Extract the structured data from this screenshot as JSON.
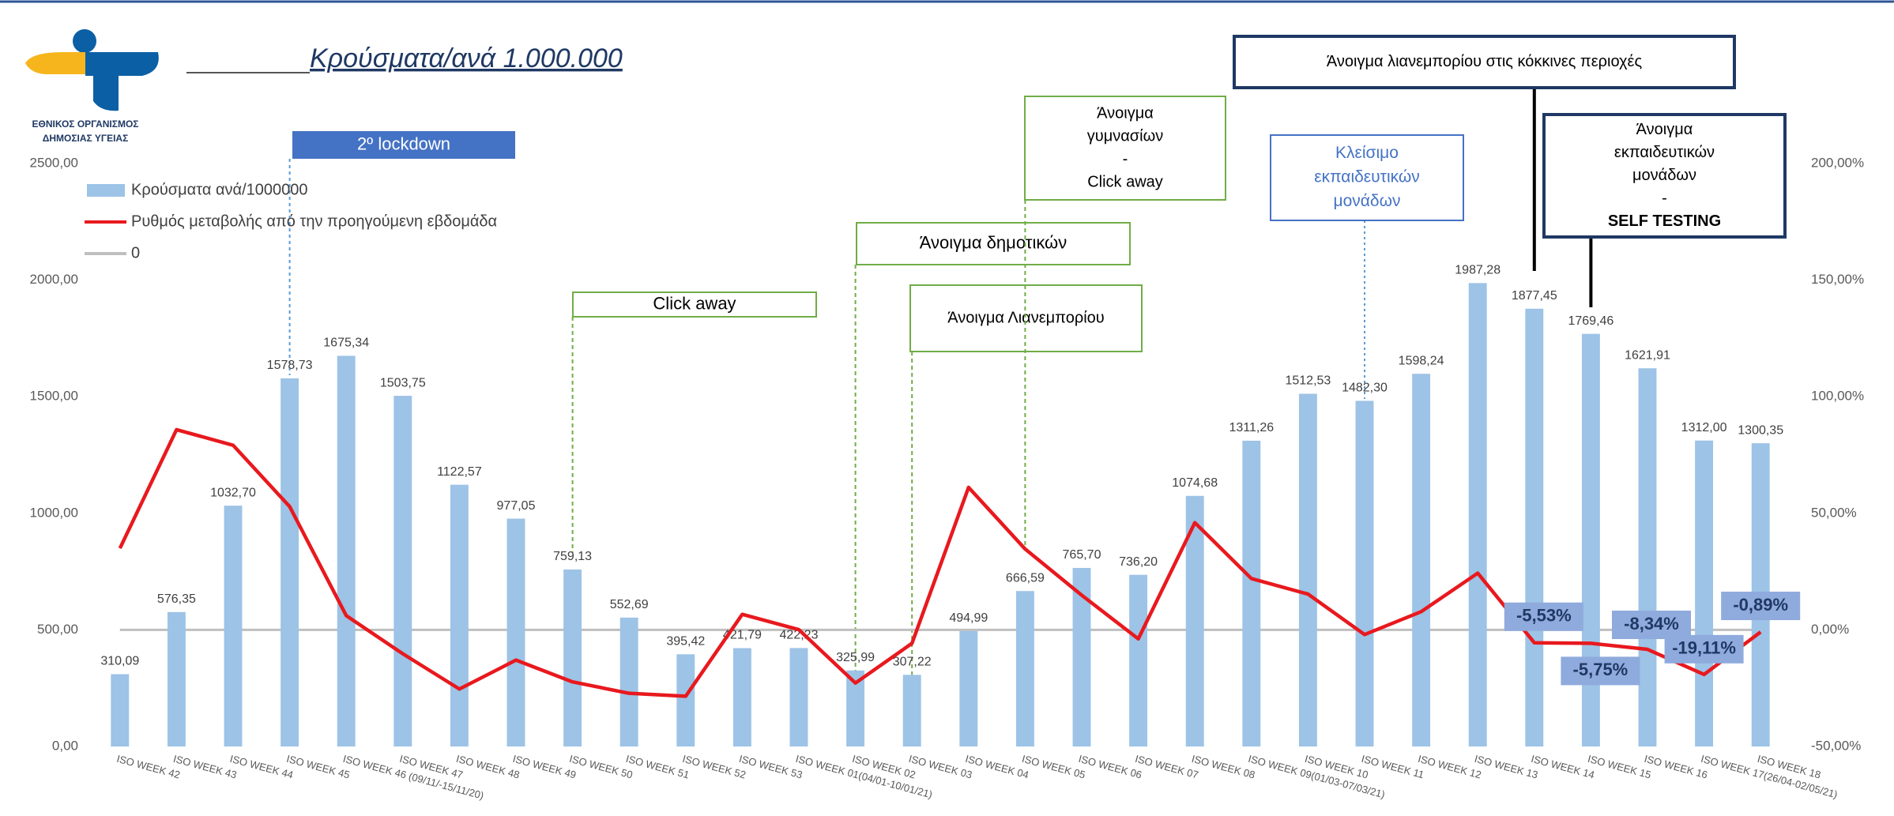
{
  "logo_text": [
    "ΕΘΝΙΚΟΣ ΟΡΓΑΝΙΣΜΟΣ",
    "ΔΗΜΟΣΙΑΣ ΥΓΕΙΑΣ"
  ],
  "chart_data": {
    "type": "bar",
    "title": "Κρούσματα/ανά 1.000.000",
    "categories": [
      "ISO WEEK 42",
      "ISO WEEK 43",
      "ISO WEEK 44",
      "ISO WEEK 45",
      "ISO WEEK 46 (09/11/-15/11/20)",
      "ISO WEEK 47",
      "ISO WEEK 48",
      "ISO WEEK 49",
      "ISO WEEK 50",
      "ISO WEEK 51",
      "ISO WEEK 52",
      "ISO WEEK 53",
      "ISO WEEK 01(04/01-10/01/21)",
      "ISO WEEK 02",
      "ISO WEEK 03",
      "ISO WEEK 04",
      "ISO WEEK 05",
      "ISO WEEK 06",
      "ISO WEEK 07",
      "ISO WEEK 08",
      "ISO WEEK 09(01/03-07/03/21)",
      "ISO WEEK 10",
      "ISO WEEK 11",
      "ISO WEEK 12",
      "ISO WEEK 13",
      "ISO WEEK 14",
      "ISO WEEK 15",
      "ISO WEEK 16",
      "ISO WEEK 17(26/04-02/05/21)",
      "ISO WEEK 18"
    ],
    "series": [
      {
        "name": "Κρούσματα ανά/1000000",
        "type": "bar",
        "color": "#9dc3e6",
        "values": [
          310.09,
          576.35,
          1032.7,
          1578.73,
          1675.34,
          1503.75,
          1122.57,
          977.05,
          759.13,
          552.69,
          395.42,
          421.79,
          422.23,
          325.99,
          307.22,
          494.99,
          666.59,
          765.7,
          736.2,
          1074.68,
          1311.26,
          1512.53,
          1482.3,
          1598.24,
          1987.28,
          1877.45,
          1769.46,
          1621.91,
          1312.0,
          1300.35
        ],
        "value_labels": [
          "310,09",
          "576,35",
          "1032,70",
          "1578,73",
          "1675,34",
          "1503,75",
          "1122,57",
          "977,05",
          "759,13",
          "552,69",
          "395,42",
          "421,79",
          "422,23",
          "325,99",
          "307,22",
          "494,99",
          "666,59",
          "765,70",
          "736,20",
          "1074,68",
          "1311,26",
          "1512,53",
          "1482,30",
          "1598,24",
          "1987,28",
          "1877,45",
          "1769,46",
          "1621,91",
          "1312,00",
          "1300,35"
        ]
      },
      {
        "name": "Ρυθμός μεταβολής από την προηγούμενη εβδομάδα",
        "type": "line",
        "axis": "y2",
        "color": "#e8191e",
        "values": [
          35,
          85.87,
          79.18,
          52.87,
          6.12,
          -10.24,
          -25.35,
          -12.96,
          -22.3,
          -27.19,
          -28.45,
          6.67,
          0.1,
          -22.79,
          -5.76,
          61.12,
          34.67,
          14.87,
          -3.85,
          45.98,
          22.01,
          15.35,
          -2.0,
          7.82,
          24.34,
          -5.53,
          -5.75,
          -8.34,
          -19.11,
          -0.89
        ],
        "value_labels": [
          null,
          null,
          null,
          null,
          null,
          null,
          null,
          null,
          null,
          null,
          null,
          null,
          null,
          null,
          null,
          null,
          null,
          null,
          null,
          null,
          null,
          null,
          null,
          null,
          null,
          "-5,53%",
          "-5,75%",
          "-8,34%",
          "-19,11%",
          "-0,89%"
        ]
      },
      {
        "name": "0",
        "type": "line",
        "axis": "y2",
        "color": "#bfbfbf",
        "values": [
          0,
          0,
          0,
          0,
          0,
          0,
          0,
          0,
          0,
          0,
          0,
          0,
          0,
          0,
          0,
          0,
          0,
          0,
          0,
          0,
          0,
          0,
          0,
          0,
          0,
          0,
          0,
          0,
          0,
          0
        ]
      }
    ],
    "ylim": [
      0,
      2500
    ],
    "yticks": [
      {
        "value": 0,
        "label": "0,00"
      },
      {
        "value": 500,
        "label": "500,00"
      },
      {
        "value": 1000,
        "label": "1000,00"
      },
      {
        "value": 1500,
        "label": "1500,00"
      },
      {
        "value": 2000,
        "label": "2000,00"
      },
      {
        "value": 2500,
        "label": "2500,00"
      }
    ],
    "y2lim": [
      -50,
      200
    ],
    "y2ticks": [
      {
        "value": -50,
        "label": "-50,00%"
      },
      {
        "value": 0,
        "label": "0,00%"
      },
      {
        "value": 50,
        "label": "50,00%"
      },
      {
        "value": 100,
        "label": "100,00%"
      },
      {
        "value": 150,
        "label": "150,00%"
      },
      {
        "value": 200,
        "label": "200,00%"
      }
    ],
    "legend": "top-left",
    "annotations": [
      {
        "lines": [
          "2º lockdown"
        ]
      },
      {
        "lines": [
          "Click away"
        ]
      },
      {
        "lines": [
          "Άνοιγμα δημοτικών"
        ]
      },
      {
        "lines": [
          "Άνοιγμα Λιανεμπορίου"
        ]
      },
      {
        "lines": [
          "Άνοιγμα",
          "γυμνασίων",
          "-",
          "Click away"
        ]
      },
      {
        "lines": [
          "Κλείσιμο",
          "εκπαιδευτικών",
          "μονάδων"
        ]
      },
      {
        "lines": [
          "Άνοιγμα λιανεμπορίου στις κόκκινες περιοχές"
        ]
      },
      {
        "lines": [
          "Άνοιγμα",
          "εκπαιδευτικών",
          "μονάδων",
          "-",
          "SELF TESTING"
        ]
      }
    ]
  }
}
